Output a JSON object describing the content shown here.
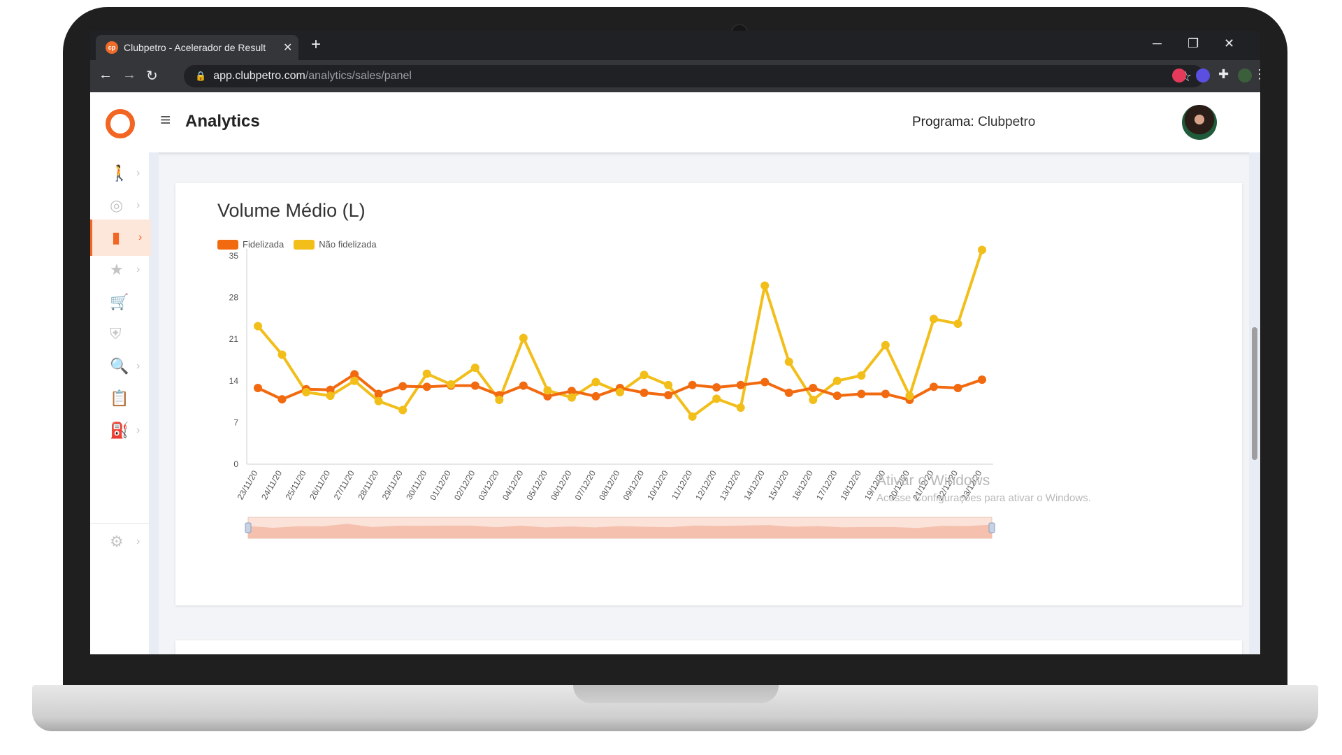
{
  "browser": {
    "tab_title": "Clubpetro - Acelerador de Result",
    "favicon_text": "cp",
    "url_host": "app.clubpetro.com",
    "url_path": "/analytics/sales/panel",
    "new_tab": "+",
    "minimize": "─",
    "restore": "❐",
    "close": "✕"
  },
  "app": {
    "title": "Analytics",
    "program_label": "Programa:",
    "program_value": "Clubpetro"
  },
  "sidebar": {
    "items": [
      {
        "icon": "walk-icon",
        "glyph": "🚶",
        "has_chevron": true,
        "active": false
      },
      {
        "icon": "target-icon",
        "glyph": "◎",
        "has_chevron": true,
        "active": false
      },
      {
        "icon": "bar-chart-icon",
        "glyph": "▮",
        "has_chevron": true,
        "active": true
      },
      {
        "icon": "star-icon",
        "glyph": "★",
        "has_chevron": true,
        "active": false
      },
      {
        "icon": "cart-add-icon",
        "glyph": "🛒",
        "has_chevron": false,
        "active": false
      },
      {
        "icon": "shield-check-icon",
        "glyph": "⛨",
        "has_chevron": false,
        "active": false
      },
      {
        "icon": "search-doc-icon",
        "glyph": "🔍",
        "has_chevron": true,
        "active": false
      },
      {
        "icon": "clipboard-icon",
        "glyph": "📋",
        "has_chevron": false,
        "active": false
      },
      {
        "icon": "fuel-pump-icon",
        "glyph": "⛽",
        "has_chevron": true,
        "active": false
      }
    ],
    "settings_icon": "gear-icon"
  },
  "chart_data": {
    "type": "line",
    "title": "Volume Médio (L)",
    "categories": [
      "23/11/20",
      "24/11/20",
      "25/11/20",
      "26/11/20",
      "27/11/20",
      "28/11/20",
      "29/11/20",
      "30/11/20",
      "01/12/20",
      "02/12/20",
      "03/12/20",
      "04/12/20",
      "05/12/20",
      "06/12/20",
      "07/12/20",
      "08/12/20",
      "09/12/20",
      "10/12/20",
      "11/12/20",
      "12/12/20",
      "13/12/20",
      "14/12/20",
      "15/12/20",
      "16/12/20",
      "17/12/20",
      "18/12/20",
      "19/12/20",
      "20/12/20",
      "21/12/20",
      "22/12/20",
      "23/12/20"
    ],
    "series": [
      {
        "name": "Fidelizada",
        "color": "#f26a10",
        "values": [
          12.8,
          10.9,
          12.6,
          12.5,
          15.1,
          11.8,
          13.1,
          13.0,
          13.2,
          13.2,
          11.6,
          13.2,
          11.4,
          12.3,
          11.4,
          12.8,
          12.0,
          11.6,
          13.3,
          12.9,
          13.3,
          13.8,
          12.0,
          12.8,
          11.5,
          11.8,
          11.8,
          10.8,
          13.0,
          12.8,
          14.2
        ]
      },
      {
        "name": "Não fidelizada",
        "color": "#f2be1a",
        "values": [
          23.2,
          18.4,
          12.1,
          11.5,
          14.0,
          10.6,
          9.1,
          15.2,
          13.4,
          16.2,
          10.8,
          21.2,
          12.4,
          11.2,
          13.8,
          12.1,
          15.0,
          13.3,
          8.0,
          11.0,
          9.5,
          30.0,
          17.2,
          10.8,
          14.0,
          14.9,
          20.0,
          11.5,
          24.4,
          23.6,
          36.0
        ]
      }
    ],
    "ylim": [
      0,
      35
    ],
    "yticks": [
      0,
      7,
      14,
      21,
      28,
      35
    ],
    "legend": "top-left",
    "grid": false,
    "range_selector": true
  },
  "watermark": {
    "line1": "Ativar o Windows",
    "line2": "Acesse Configurações para ativar o Windows."
  }
}
